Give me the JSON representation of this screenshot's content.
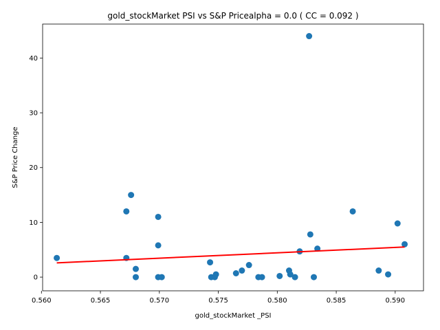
{
  "chart_data": {
    "type": "scatter",
    "title": "gold_stockMarket  PSI vs S&P Pricealpha = 0.0 ( CC = 0.092 )",
    "xlabel": "gold_stockMarket _PSI",
    "ylabel": "S&P Price Change",
    "xlim": [
      0.5601,
      0.5924
    ],
    "ylim": [
      -2.5,
      46.2
    ],
    "x_ticks": [
      0.56,
      0.565,
      0.57,
      0.575,
      0.58,
      0.585,
      0.59
    ],
    "x_tick_labels": [
      "0.560",
      "0.565",
      "0.570",
      "0.575",
      "0.580",
      "0.585",
      "0.590"
    ],
    "y_ticks": [
      0,
      10,
      20,
      30,
      40
    ],
    "y_tick_labels": [
      "0",
      "10",
      "20",
      "30",
      "40"
    ],
    "grid": false,
    "point_color": "#1f77b4",
    "line_color": "#ff0000",
    "series": [
      {
        "kind": "scatter",
        "points": [
          [
            0.5613,
            3.5
          ],
          [
            0.5672,
            12.0
          ],
          [
            0.5672,
            3.5
          ],
          [
            0.5676,
            15.0
          ],
          [
            0.568,
            1.5
          ],
          [
            0.568,
            0.0
          ],
          [
            0.5699,
            11.0
          ],
          [
            0.5699,
            5.8
          ],
          [
            0.5699,
            0.0
          ],
          [
            0.5702,
            0.0
          ],
          [
            0.5743,
            2.7
          ],
          [
            0.5744,
            0.0
          ],
          [
            0.5747,
            0.0
          ],
          [
            0.5748,
            0.5
          ],
          [
            0.5765,
            0.7
          ],
          [
            0.577,
            1.2
          ],
          [
            0.5776,
            2.2
          ],
          [
            0.5784,
            0.0
          ],
          [
            0.5787,
            0.0
          ],
          [
            0.5802,
            0.2
          ],
          [
            0.581,
            1.2
          ],
          [
            0.5811,
            0.5
          ],
          [
            0.5815,
            0.0
          ],
          [
            0.5819,
            4.7
          ],
          [
            0.5827,
            44.0
          ],
          [
            0.5828,
            7.8
          ],
          [
            0.5831,
            0.0
          ],
          [
            0.5834,
            5.2
          ],
          [
            0.5864,
            12.0
          ],
          [
            0.5886,
            1.2
          ],
          [
            0.5894,
            0.5
          ],
          [
            0.5902,
            9.8
          ],
          [
            0.5908,
            6.0
          ]
        ]
      },
      {
        "kind": "line",
        "points": [
          [
            0.5613,
            2.6
          ],
          [
            0.5908,
            5.5
          ]
        ]
      }
    ]
  }
}
